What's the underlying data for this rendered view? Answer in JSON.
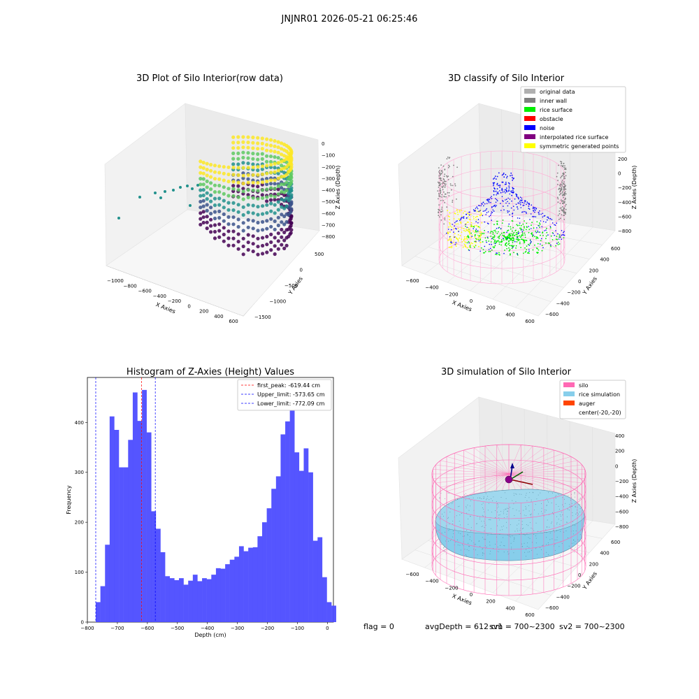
{
  "suptitle": "JNJNR01 2026-05-21 06:25:46",
  "footer": {
    "flag": "flag = 0",
    "avg_depth": "avgDepth = 612 cm",
    "sv1": "sv1 = 700~2300",
    "sv2": "sv2 = 700~2300"
  },
  "colors": {
    "viridis": [
      "#440154",
      "#3b528b",
      "#21918c",
      "#5ec962",
      "#fde725"
    ],
    "hist_bar": "#4c4cff",
    "silo": "#ff69b4",
    "rice_simulation": "#87ceeb",
    "auger": "#ff4500",
    "original_data": "#b0b0b0",
    "inner_wall": "#808080",
    "rice_surface": "#00ee00",
    "obstacle": "#ff0000",
    "noise": "#0000ff",
    "interpolated_rice_surface": "#800080",
    "symmetric_generated_points": "#ffff00"
  },
  "panels": {
    "raw": {
      "title": "3D Plot of Silo Interior(row data)",
      "xlabel": "X Axies",
      "ylabel": "Y Axies",
      "zlabel": "Z Axies (Depth)",
      "xticks": [
        "−1000",
        "−800",
        "−600",
        "−400",
        "−200",
        "0",
        "200",
        "400",
        "600"
      ],
      "yticks": [
        "−1500",
        "−1000",
        "−500",
        "0",
        "500"
      ],
      "zticks": [
        "0",
        "−100",
        "−200",
        "−300",
        "−400",
        "−500",
        "−600",
        "−700",
        "−800"
      ]
    },
    "classify": {
      "title": "3D classify of Silo Interior",
      "xlabel": "X Axies",
      "ylabel": "Y Axies",
      "zlabel": "Z Axies (Depth)",
      "xticks": [
        "−600",
        "−400",
        "−200",
        "0",
        "200",
        "400",
        "600"
      ],
      "yticks": [
        "−600",
        "−400",
        "−200",
        "0",
        "200",
        "400",
        "600"
      ],
      "zticks": [
        "200",
        "0",
        "−200",
        "−400",
        "−600",
        "−800"
      ],
      "legend": [
        {
          "label": "original data",
          "color": "#b0b0b0"
        },
        {
          "label": "inner wall",
          "color": "#808080"
        },
        {
          "label": "rice surface",
          "color": "#00ee00"
        },
        {
          "label": "obstacle",
          "color": "#ff0000"
        },
        {
          "label": "noise",
          "color": "#0000ff"
        },
        {
          "label": "interpolated rice surface",
          "color": "#800080"
        },
        {
          "label": "symmetric generated points",
          "color": "#ffff00"
        }
      ]
    },
    "simulation": {
      "title": "3D simulation of Silo Interior",
      "xlabel": "X Axies",
      "ylabel": "Y Axies",
      "zlabel": "Z Axies (Depth)",
      "xticks": [
        "−600",
        "−400",
        "−200",
        "0",
        "200",
        "400",
        "600"
      ],
      "yticks": [
        "−600",
        "−400",
        "−200",
        "0",
        "200",
        "400",
        "600"
      ],
      "zticks": [
        "400",
        "200",
        "0",
        "−200",
        "−400",
        "−600",
        "−800"
      ],
      "legend": [
        {
          "label": "silo",
          "color": "#ff69b4"
        },
        {
          "label": "rice simulation",
          "color": "#87ceeb"
        },
        {
          "label": "auger",
          "color": "#ff4500"
        },
        {
          "label": "center(-20,-20)",
          "color": ""
        }
      ]
    }
  },
  "chart_data": {
    "type": "bar",
    "title": "Histogram of Z-Axies (Height) Values",
    "xlabel": "Depth (cm)",
    "ylabel": "Frequency",
    "xlim": [
      -800,
      20
    ],
    "ylim": [
      0,
      490
    ],
    "xticks": [
      -800,
      -700,
      -600,
      -500,
      -400,
      -300,
      -200,
      -100,
      0
    ],
    "yticks": [
      0,
      100,
      200,
      300,
      400
    ],
    "bin_start": -772,
    "bin_width": 15.4,
    "values": [
      40,
      72,
      155,
      412,
      385,
      310,
      310,
      365,
      460,
      403,
      465,
      380,
      222,
      187,
      140,
      92,
      88,
      84,
      88,
      75,
      83,
      95,
      82,
      88,
      86,
      95,
      108,
      107,
      116,
      125,
      131,
      152,
      142,
      149,
      150,
      172,
      200,
      228,
      267,
      292,
      376,
      402,
      430,
      340,
      303,
      348,
      300,
      163,
      170,
      90,
      40,
      33
    ],
    "lines": [
      {
        "name": "first_peak: -619.44 cm",
        "x": -619.44,
        "color": "#ff0000"
      },
      {
        "name": "Upper_limit: -573.65 cm",
        "x": -573.65,
        "color": "#0000ff"
      },
      {
        "name": "Lower_limit: -772.09 cm",
        "x": -772.09,
        "color": "#0000ff"
      }
    ],
    "legend_position": "top-right"
  }
}
